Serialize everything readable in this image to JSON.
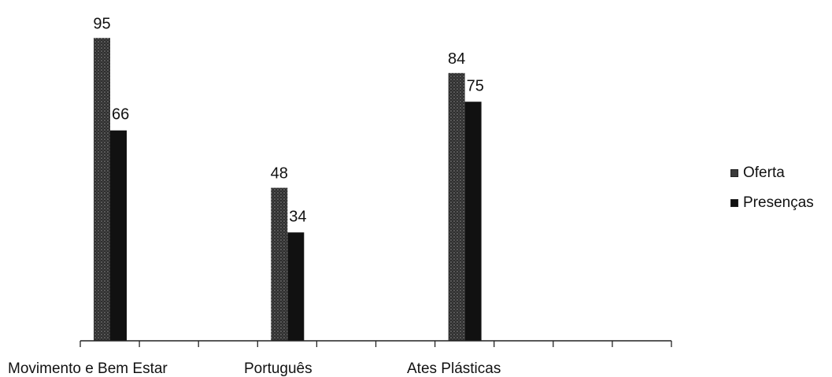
{
  "chart_data": {
    "type": "bar",
    "title": "",
    "xlabel": "",
    "ylabel": "",
    "categories": [
      "Movimento e Bem Estar",
      "Português",
      "Ates Plásticas"
    ],
    "series": [
      {
        "name": "Oferta",
        "values": [
          95,
          48,
          84
        ],
        "color": "#3a3a3a"
      },
      {
        "name": "Presenças",
        "values": [
          66,
          34,
          75
        ],
        "color": "#111111"
      }
    ],
    "ylim": [
      0,
      100
    ],
    "grid": false,
    "legend_position": "right"
  },
  "legend": {
    "items": [
      {
        "label": "Oferta"
      },
      {
        "label": "Presenças"
      }
    ]
  }
}
